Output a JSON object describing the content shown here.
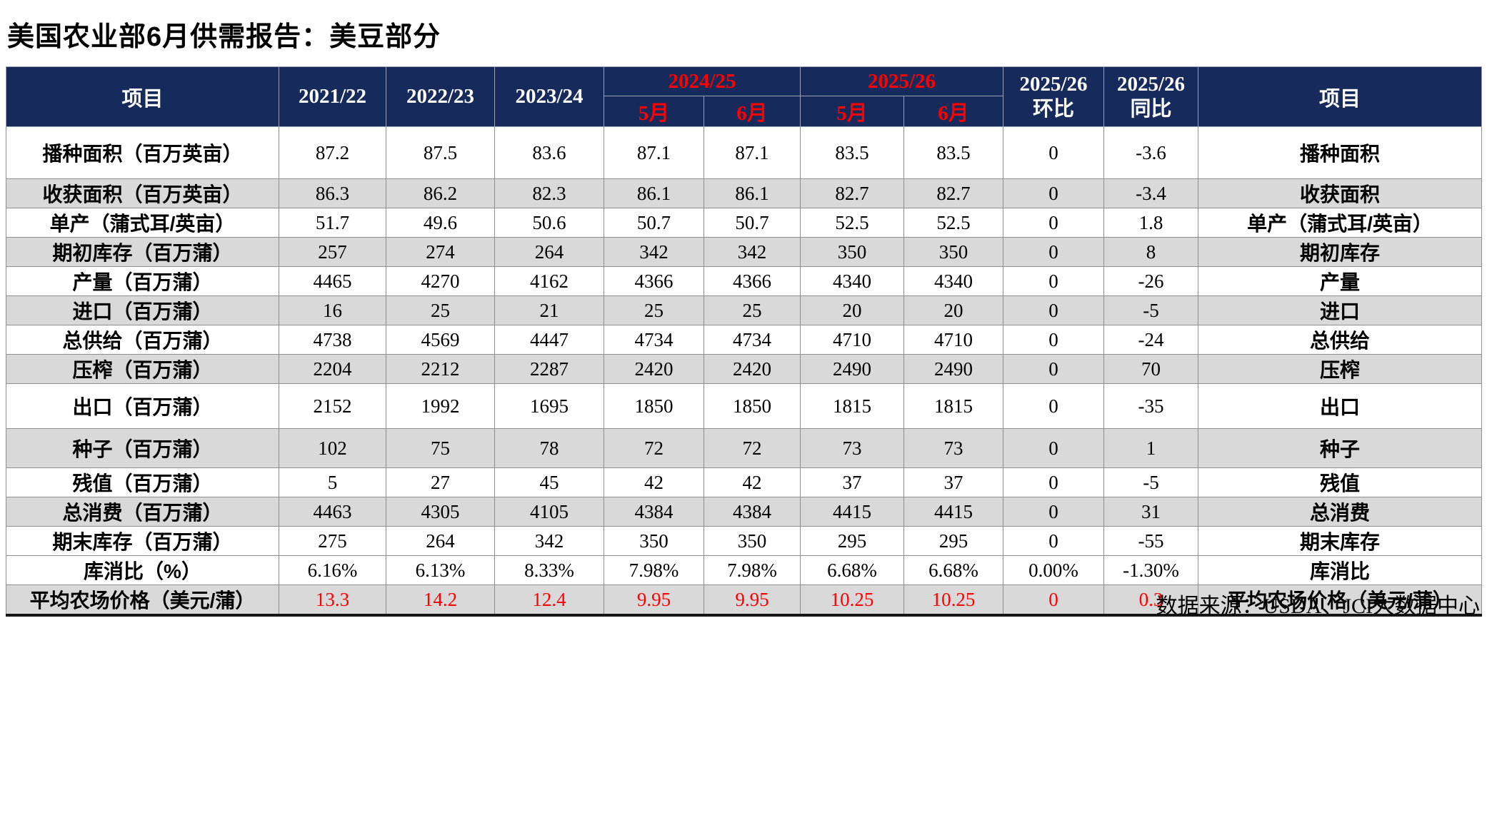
{
  "page": {
    "title": "美国农业部6月供需报告：美豆部分",
    "footer": "数据来源：USDA、JCI大数据中心"
  },
  "colors": {
    "header_bg": "#172A5C",
    "header_text": "#FFFFFF",
    "accent_red": "#FF0000",
    "shaded_row_bg": "#D9D9D9",
    "grid_line": "#8E8E8E"
  },
  "table": {
    "header": {
      "item_left": "项目",
      "years": [
        "2021/22",
        "2022/23",
        "2023/24"
      ],
      "group_2024_25": "2024/25",
      "group_2025_26": "2025/26",
      "months": [
        "5月",
        "6月",
        "5月",
        "6月"
      ],
      "mom": {
        "line1": "2025/26",
        "line2": "环比"
      },
      "yoy": {
        "line1": "2025/26",
        "line2": "同比"
      },
      "item_right": "项目"
    },
    "rows": [
      {
        "label": "播种面积（百万英亩）",
        "values": [
          "87.2",
          "87.5",
          "83.6",
          "87.1",
          "87.1",
          "83.5",
          "83.5",
          "0",
          "-3.6"
        ],
        "label_right": "播种面积",
        "shaded": false,
        "red_values": false
      },
      {
        "label": "收获面积（百万英亩）",
        "values": [
          "86.3",
          "86.2",
          "82.3",
          "86.1",
          "86.1",
          "82.7",
          "82.7",
          "0",
          "-3.4"
        ],
        "label_right": "收获面积",
        "shaded": true,
        "red_values": false
      },
      {
        "label": "单产（蒲式耳/英亩）",
        "values": [
          "51.7",
          "49.6",
          "50.6",
          "50.7",
          "50.7",
          "52.5",
          "52.5",
          "0",
          "1.8"
        ],
        "label_right": "单产（蒲式耳/英亩）",
        "shaded": false,
        "red_values": false
      },
      {
        "label": "期初库存（百万蒲）",
        "values": [
          "257",
          "274",
          "264",
          "342",
          "342",
          "350",
          "350",
          "0",
          "8"
        ],
        "label_right": "期初库存",
        "shaded": true,
        "red_values": false
      },
      {
        "label": "产量（百万蒲）",
        "values": [
          "4465",
          "4270",
          "4162",
          "4366",
          "4366",
          "4340",
          "4340",
          "0",
          "-26"
        ],
        "label_right": "产量",
        "shaded": false,
        "red_values": false
      },
      {
        "label": "进口（百万蒲）",
        "values": [
          "16",
          "25",
          "21",
          "25",
          "25",
          "20",
          "20",
          "0",
          "-5"
        ],
        "label_right": "进口",
        "shaded": true,
        "red_values": false
      },
      {
        "label": "总供给（百万蒲）",
        "values": [
          "4738",
          "4569",
          "4447",
          "4734",
          "4734",
          "4710",
          "4710",
          "0",
          "-24"
        ],
        "label_right": "总供给",
        "shaded": false,
        "red_values": false
      },
      {
        "label": "压榨（百万蒲）",
        "values": [
          "2204",
          "2212",
          "2287",
          "2420",
          "2420",
          "2490",
          "2490",
          "0",
          "70"
        ],
        "label_right": "压榨",
        "shaded": true,
        "red_values": false
      },
      {
        "label": "出口（百万蒲）",
        "values": [
          "2152",
          "1992",
          "1695",
          "1850",
          "1850",
          "1815",
          "1815",
          "0",
          "-35"
        ],
        "label_right": "出口",
        "shaded": false,
        "red_values": false
      },
      {
        "label": "种子（百万蒲）",
        "values": [
          "102",
          "75",
          "78",
          "72",
          "72",
          "73",
          "73",
          "0",
          "1"
        ],
        "label_right": "种子",
        "shaded": true,
        "red_values": false
      },
      {
        "label": "残值（百万蒲）",
        "values": [
          "5",
          "27",
          "45",
          "42",
          "42",
          "37",
          "37",
          "0",
          "-5"
        ],
        "label_right": "残值",
        "shaded": false,
        "red_values": false
      },
      {
        "label": "总消费（百万蒲）",
        "values": [
          "4463",
          "4305",
          "4105",
          "4384",
          "4384",
          "4415",
          "4415",
          "0",
          "31"
        ],
        "label_right": "总消费",
        "shaded": true,
        "red_values": false
      },
      {
        "label": "期末库存（百万蒲）",
        "values": [
          "275",
          "264",
          "342",
          "350",
          "350",
          "295",
          "295",
          "0",
          "-55"
        ],
        "label_right": "期末库存",
        "shaded": false,
        "red_values": false
      },
      {
        "label": "库消比（%）",
        "values": [
          "6.16%",
          "6.13%",
          "8.33%",
          "7.98%",
          "7.98%",
          "6.68%",
          "6.68%",
          "0.00%",
          "-1.30%"
        ],
        "label_right": "库消比",
        "shaded": false,
        "red_values": false
      },
      {
        "label": "平均农场价格（美元/蒲）",
        "values": [
          "13.3",
          "14.2",
          "12.4",
          "9.95",
          "9.95",
          "10.25",
          "10.25",
          "0",
          "0.3"
        ],
        "label_right": "平均农场价格（美元/蒲）",
        "shaded": true,
        "red_values": true
      }
    ]
  }
}
